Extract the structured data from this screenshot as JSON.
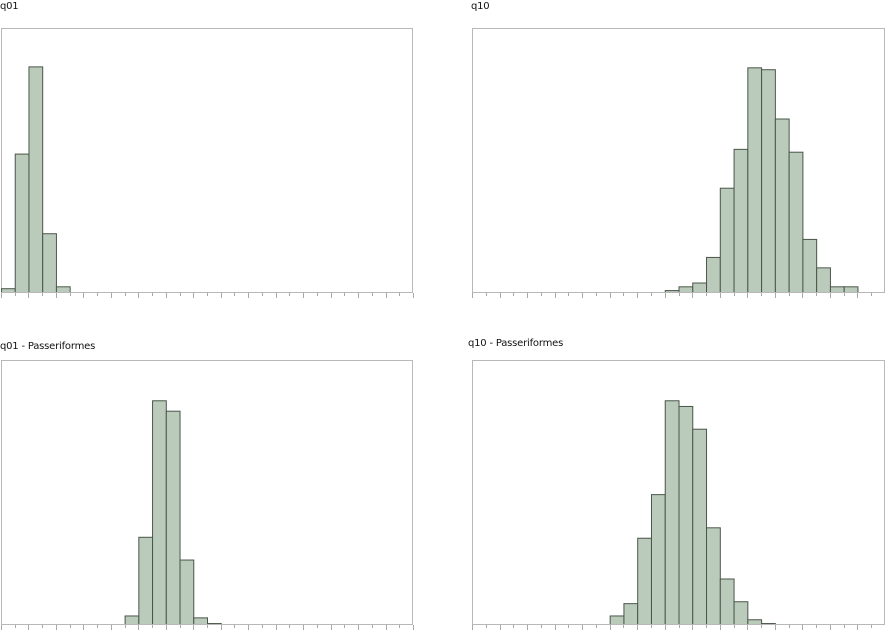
{
  "colors": {
    "bar_fill": "#bbcbbb",
    "bar_stroke": "#4a554a",
    "frame": "#b8b8b8",
    "tick": "#a8a8a8"
  },
  "chart_data": [
    {
      "type": "bar",
      "subtype": "histogram",
      "title": "q01",
      "xlabel": "",
      "ylabel": "",
      "bin_count_axis": 30,
      "first_bin": 0,
      "values": [
        4,
        146,
        238,
        62,
        6
      ],
      "grid": false
    },
    {
      "type": "bar",
      "subtype": "histogram",
      "title": "q10",
      "xlabel": "",
      "ylabel": "",
      "bin_count_axis": 30,
      "first_bin": 14,
      "values": [
        2,
        6,
        10,
        37,
        110,
        151,
        237,
        235,
        183,
        148,
        56,
        26,
        6,
        6
      ],
      "grid": false
    },
    {
      "type": "bar",
      "subtype": "histogram",
      "title": "q01 - Passeriformes",
      "xlabel": "",
      "ylabel": "",
      "bin_count_axis": 30,
      "first_bin": 9,
      "values": [
        9,
        92,
        236,
        225,
        68,
        7,
        1
      ],
      "grid": false
    },
    {
      "type": "bar",
      "subtype": "histogram",
      "title": "q10 - Passeriformes",
      "xlabel": "",
      "ylabel": "",
      "bin_count_axis": 30,
      "first_bin": 10,
      "values": [
        9,
        22,
        91,
        137,
        236,
        230,
        206,
        102,
        48,
        24,
        5,
        1
      ],
      "grid": false
    }
  ]
}
